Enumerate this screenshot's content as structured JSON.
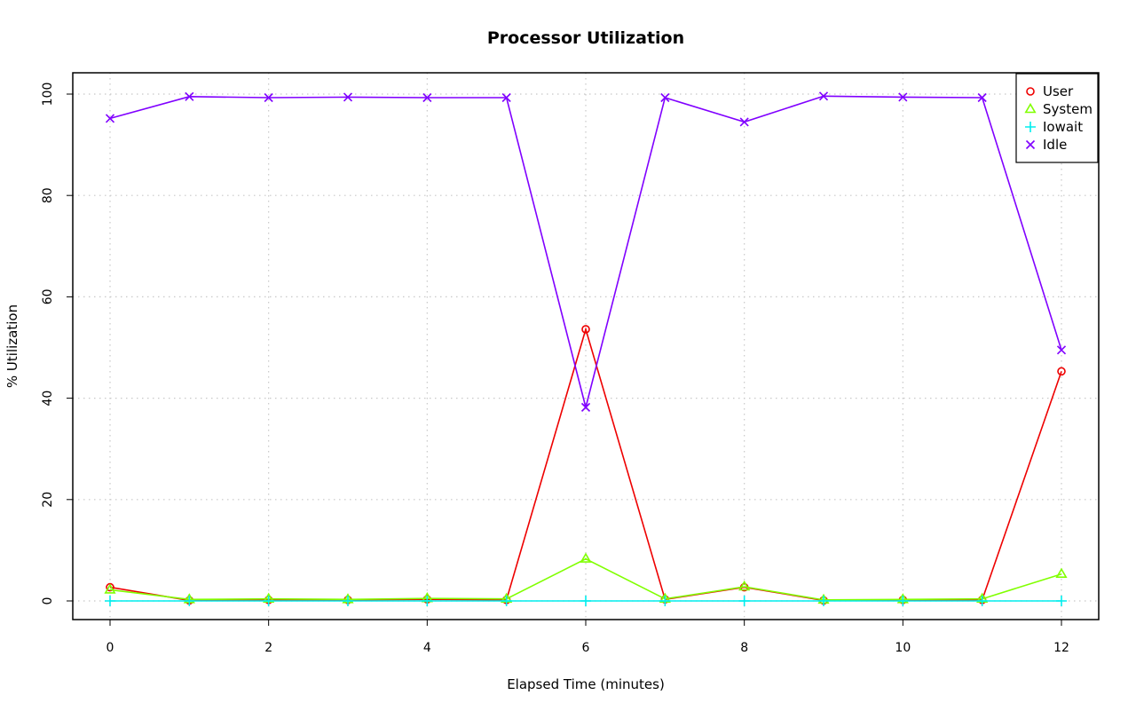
{
  "chart_data": {
    "type": "line",
    "title": "Processor Utilization",
    "xlabel": "Elapsed Time (minutes)",
    "ylabel": "% Utilization",
    "x": [
      0,
      1,
      2,
      3,
      4,
      5,
      6,
      7,
      8,
      9,
      10,
      11,
      12
    ],
    "xlim": [
      0,
      12
    ],
    "ylim": [
      0,
      100
    ],
    "xticks": [
      0,
      2,
      4,
      6,
      8,
      10,
      12
    ],
    "yticks": [
      0,
      20,
      40,
      60,
      80,
      100
    ],
    "grid": true,
    "legend_position": "top-right",
    "series": [
      {
        "name": "User",
        "color": "#ee0000",
        "marker": "circle",
        "values": [
          2.7,
          0.1,
          0.2,
          0.2,
          0.3,
          0.2,
          53.6,
          0.3,
          2.7,
          0.1,
          0.2,
          0.2,
          45.3
        ]
      },
      {
        "name": "System",
        "color": "#80ff00",
        "marker": "triangle",
        "values": [
          2.2,
          0.3,
          0.4,
          0.3,
          0.5,
          0.4,
          8.3,
          0.4,
          2.8,
          0.2,
          0.3,
          0.4,
          5.3
        ]
      },
      {
        "name": "Iowait",
        "color": "#00eeee",
        "marker": "plus",
        "values": [
          0,
          0,
          0,
          0,
          0,
          0,
          0,
          0,
          0,
          0,
          0,
          0,
          0
        ]
      },
      {
        "name": "Idle",
        "color": "#8000ff",
        "marker": "cross",
        "values": [
          95.2,
          99.5,
          99.3,
          99.4,
          99.3,
          99.3,
          38.2,
          99.3,
          94.5,
          99.6,
          99.4,
          99.3,
          49.5
        ]
      }
    ]
  }
}
